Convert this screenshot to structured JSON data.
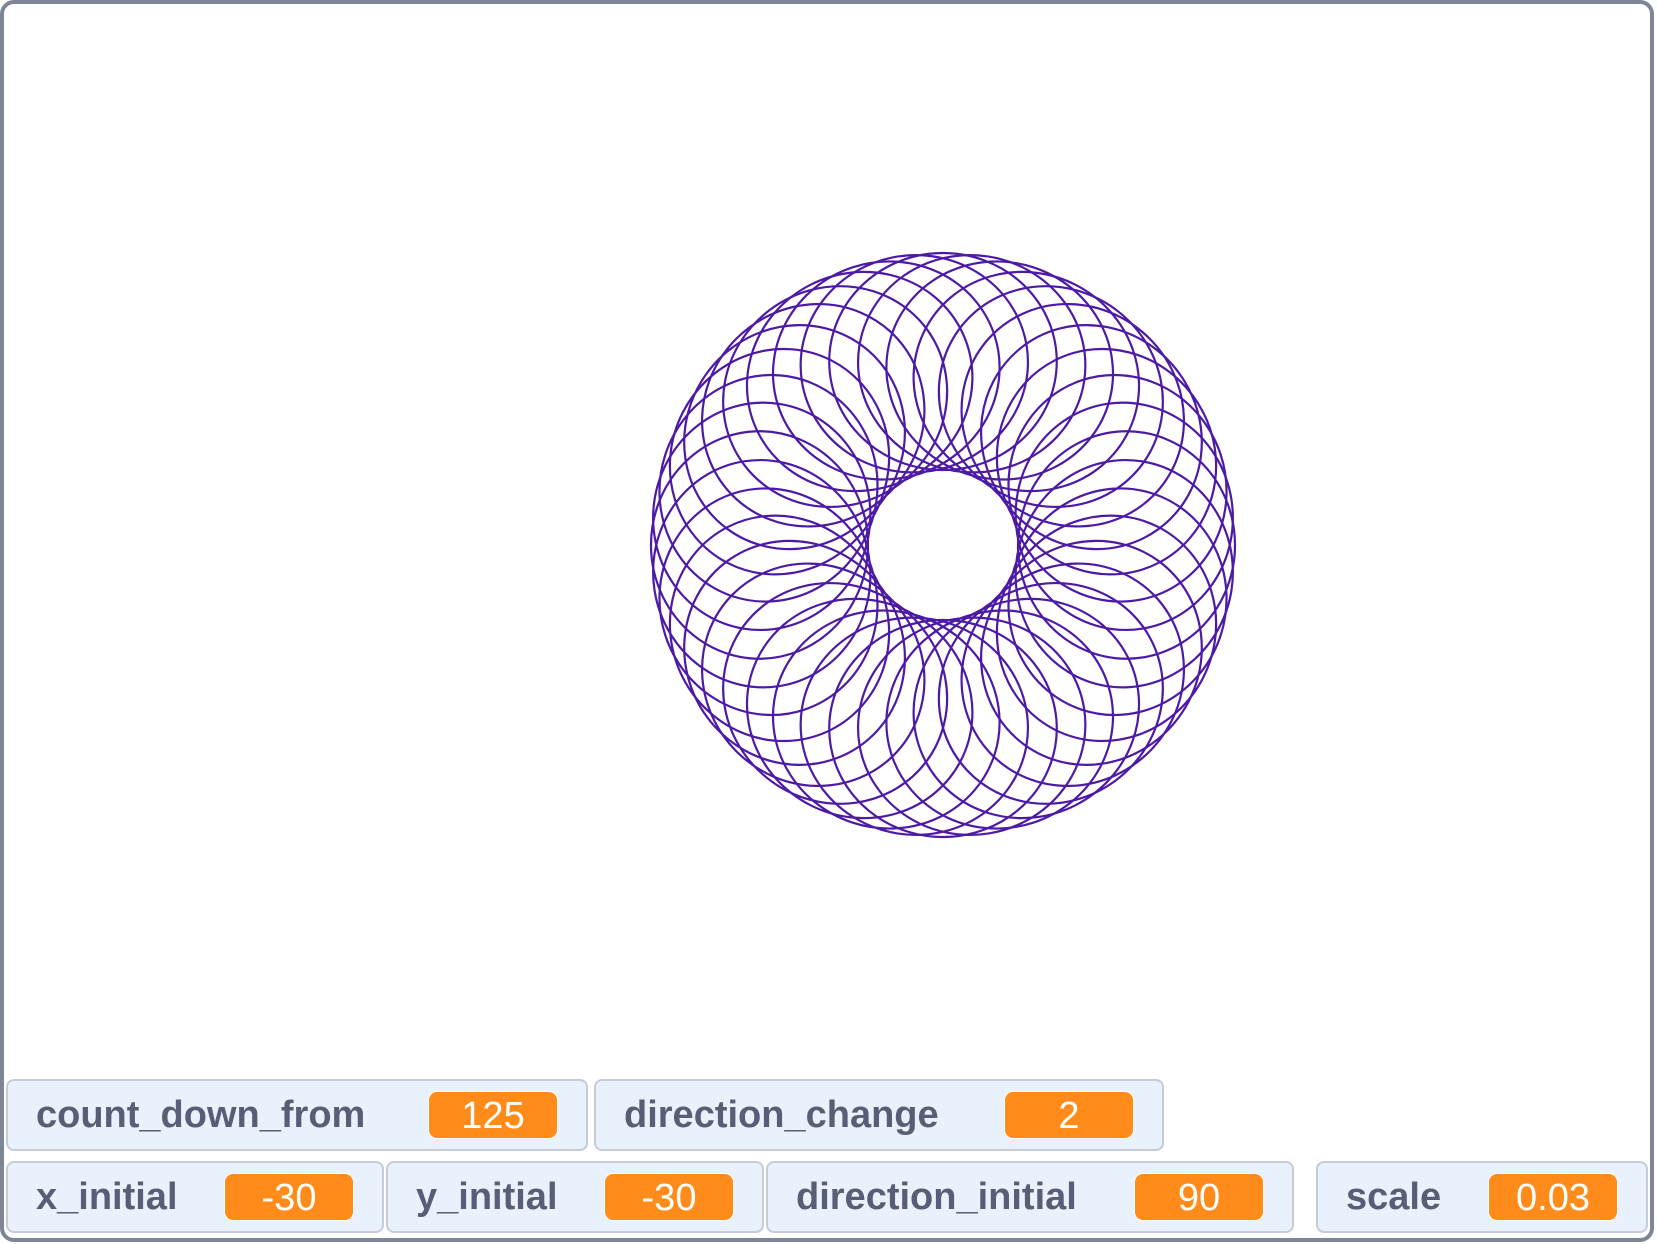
{
  "stage": {
    "pen_color": "#4d1aa6",
    "background": "#ffffff"
  },
  "monitors": [
    {
      "label": "count_down_from",
      "value": "125"
    },
    {
      "label": "direction_change",
      "value": "2"
    },
    {
      "label": "x_initial",
      "value": "-30"
    },
    {
      "label": "y_initial",
      "value": "-30"
    },
    {
      "label": "direction_initial",
      "value": "90"
    },
    {
      "label": "scale",
      "value": "0.03"
    }
  ]
}
